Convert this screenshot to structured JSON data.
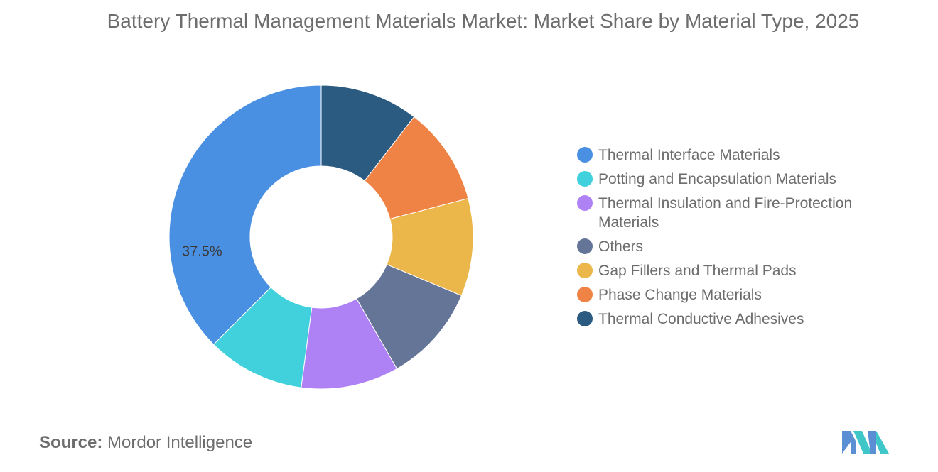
{
  "title": "Battery Thermal Management Materials Market: Market Share by Material Type, 2025",
  "source": {
    "prefix": "Source:",
    "name": "Mordor Intelligence"
  },
  "chart_data": {
    "type": "pie",
    "donut": true,
    "title": "Battery Thermal Management Materials Market: Market Share by Material Type, 2025",
    "legend_position": "right",
    "series": [
      {
        "name": "Thermal Interface Materials",
        "value": 37.5,
        "color": "#4a90e2",
        "label": "37.5%"
      },
      {
        "name": "Potting and Encapsulation Materials",
        "value": 10.4,
        "color": "#41d1dc",
        "label": ""
      },
      {
        "name": "Thermal Insulation and Fire-Protection Materials",
        "value": 10.4,
        "color": "#ae82f5",
        "label": ""
      },
      {
        "name": "Others",
        "value": 10.4,
        "color": "#647598",
        "label": ""
      },
      {
        "name": "Gap Fillers and Thermal Pads",
        "value": 10.4,
        "color": "#ebb64a",
        "label": ""
      },
      {
        "name": "Phase Change Materials",
        "value": 10.45,
        "color": "#ef8345",
        "label": ""
      },
      {
        "name": "Thermal Conductive Adhesives",
        "value": 10.45,
        "color": "#2c5b82",
        "label": ""
      }
    ]
  },
  "logo": {
    "name": "mordor-intelligence-logo",
    "colors": [
      "#5a8fd4",
      "#3ec6c9"
    ]
  }
}
